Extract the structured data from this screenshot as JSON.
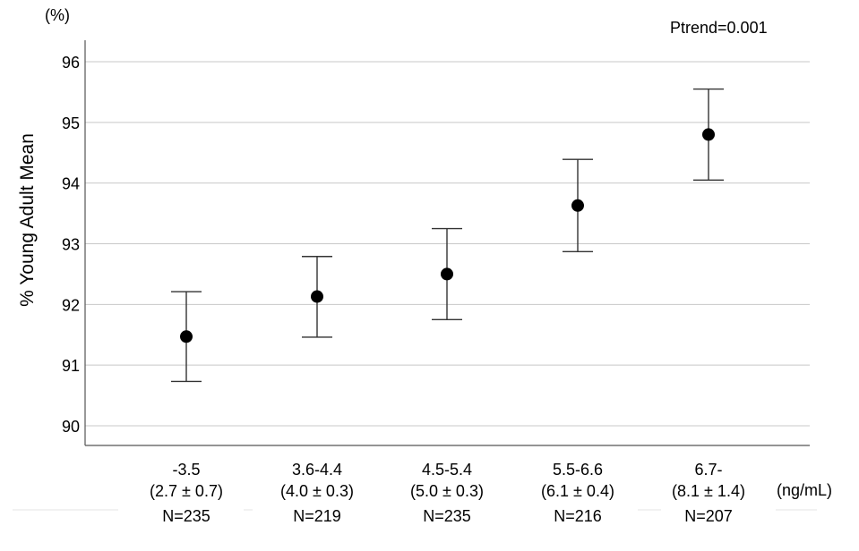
{
  "chart_data": {
    "type": "scatter",
    "unit_label": "(%)",
    "annotation": "Ptrend=0.001",
    "ylabel": "% Young Adult Mean",
    "xunit": "(ng/mL)",
    "ylim": [
      90,
      96
    ],
    "yticks": [
      90,
      91,
      92,
      93,
      94,
      95,
      96
    ],
    "grid": "horizontal",
    "categories": [
      {
        "range": "-3.5",
        "mean_sd": "(2.7 ± 0.7)",
        "n": "N=235",
        "value": 91.47,
        "ci_low": 90.73,
        "ci_high": 92.21
      },
      {
        "range": "3.6-4.4",
        "mean_sd": "(4.0 ± 0.3)",
        "n": "N=219",
        "value": 92.13,
        "ci_low": 91.46,
        "ci_high": 92.79
      },
      {
        "range": "4.5-5.4",
        "mean_sd": "(5.0 ± 0.3)",
        "n": "N=235",
        "value": 92.5,
        "ci_low": 91.75,
        "ci_high": 93.25
      },
      {
        "range": "5.5-6.6",
        "mean_sd": "(6.1 ± 0.4)",
        "n": "N=216",
        "value": 93.63,
        "ci_low": 92.87,
        "ci_high": 94.39
      },
      {
        "range": "6.7-",
        "mean_sd": "(8.1 ± 1.4)",
        "n": "N=207",
        "value": 94.8,
        "ci_low": 94.05,
        "ci_high": 95.55
      }
    ]
  }
}
